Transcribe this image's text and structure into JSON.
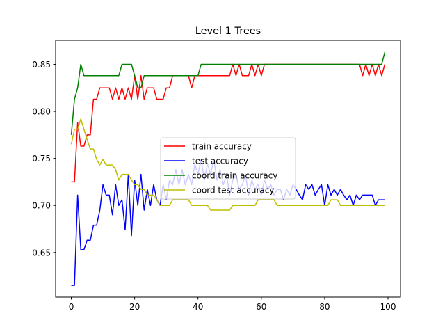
{
  "chart_data": {
    "type": "line",
    "title": "Level 1 Trees",
    "xlabel": "",
    "ylabel": "",
    "xlim": [
      -4.95,
      103.95
    ],
    "ylim": [
      0.6025,
      0.8755
    ],
    "xticks": [
      0,
      20,
      40,
      60,
      80,
      100
    ],
    "yticks": [
      0.65,
      0.7,
      0.75,
      0.8,
      0.85
    ],
    "ytick_labels": [
      "0.65",
      "0.70",
      "0.75",
      "0.80",
      "0.85"
    ],
    "grid": false,
    "legend": {
      "placement": "center"
    },
    "series": [
      {
        "name": "train accuracy",
        "color": "#ff0000",
        "x": [
          0,
          1,
          2,
          3,
          4,
          5,
          6,
          7,
          8,
          9,
          10,
          11,
          12,
          13,
          14,
          15,
          16,
          17,
          18,
          19,
          20,
          21,
          22,
          23,
          24,
          25,
          26,
          27,
          28,
          29,
          30,
          31,
          32,
          33,
          34,
          35,
          36,
          37,
          38,
          39,
          40,
          41,
          42,
          43,
          44,
          45,
          46,
          47,
          48,
          49,
          50,
          51,
          52,
          53,
          54,
          55,
          56,
          57,
          58,
          59,
          60,
          61,
          62,
          63,
          64,
          65,
          66,
          67,
          68,
          69,
          70,
          71,
          72,
          73,
          74,
          75,
          76,
          77,
          78,
          79,
          80,
          81,
          82,
          83,
          84,
          85,
          86,
          87,
          88,
          89,
          90,
          91,
          92,
          93,
          94,
          95,
          96,
          97,
          98,
          99
        ],
        "values": [
          0.725,
          0.725,
          0.788,
          0.763,
          0.763,
          0.775,
          0.775,
          0.813,
          0.813,
          0.825,
          0.825,
          0.825,
          0.825,
          0.813,
          0.825,
          0.813,
          0.825,
          0.813,
          0.825,
          0.813,
          0.838,
          0.813,
          0.838,
          0.813,
          0.825,
          0.825,
          0.825,
          0.813,
          0.813,
          0.813,
          0.825,
          0.825,
          0.838,
          0.838,
          0.838,
          0.838,
          0.838,
          0.838,
          0.825,
          0.838,
          0.838,
          0.838,
          0.838,
          0.838,
          0.838,
          0.838,
          0.838,
          0.838,
          0.838,
          0.838,
          0.838,
          0.85,
          0.838,
          0.85,
          0.838,
          0.838,
          0.838,
          0.85,
          0.838,
          0.85,
          0.838,
          0.85,
          0.85,
          0.85,
          0.85,
          0.85,
          0.85,
          0.85,
          0.85,
          0.85,
          0.85,
          0.85,
          0.85,
          0.85,
          0.85,
          0.85,
          0.85,
          0.85,
          0.85,
          0.85,
          0.85,
          0.85,
          0.85,
          0.85,
          0.85,
          0.85,
          0.85,
          0.85,
          0.85,
          0.85,
          0.85,
          0.85,
          0.838,
          0.85,
          0.838,
          0.85,
          0.838,
          0.85,
          0.838,
          0.85
        ]
      },
      {
        "name": "test accuracy",
        "color": "#0000ff",
        "x": [
          0,
          1,
          2,
          3,
          4,
          5,
          6,
          7,
          8,
          9,
          10,
          11,
          12,
          13,
          14,
          15,
          16,
          17,
          18,
          19,
          20,
          21,
          22,
          23,
          24,
          25,
          26,
          27,
          28,
          29,
          30,
          31,
          32,
          33,
          34,
          35,
          36,
          37,
          38,
          39,
          40,
          41,
          42,
          43,
          44,
          45,
          46,
          47,
          48,
          49,
          50,
          51,
          52,
          53,
          54,
          55,
          56,
          57,
          58,
          59,
          60,
          61,
          62,
          63,
          64,
          65,
          66,
          67,
          68,
          69,
          70,
          71,
          72,
          73,
          74,
          75,
          76,
          77,
          78,
          79,
          80,
          81,
          82,
          83,
          84,
          85,
          86,
          87,
          88,
          89,
          90,
          91,
          92,
          93,
          94,
          95,
          96,
          97,
          98,
          99
        ],
        "values": [
          0.615,
          0.615,
          0.711,
          0.653,
          0.653,
          0.663,
          0.663,
          0.679,
          0.679,
          0.695,
          0.722,
          0.711,
          0.711,
          0.69,
          0.722,
          0.7,
          0.706,
          0.674,
          0.733,
          0.668,
          0.727,
          0.7,
          0.733,
          0.695,
          0.717,
          0.7,
          0.722,
          0.706,
          0.7,
          0.722,
          0.706,
          0.727,
          0.722,
          0.738,
          0.722,
          0.738,
          0.722,
          0.733,
          0.722,
          0.744,
          0.733,
          0.749,
          0.727,
          0.744,
          0.733,
          0.749,
          0.727,
          0.738,
          0.722,
          0.733,
          0.711,
          0.727,
          0.733,
          0.717,
          0.722,
          0.733,
          0.711,
          0.727,
          0.717,
          0.722,
          0.711,
          0.727,
          0.717,
          0.722,
          0.711,
          0.717,
          0.717,
          0.706,
          0.717,
          0.711,
          0.722,
          0.717,
          0.711,
          0.706,
          0.722,
          0.717,
          0.722,
          0.711,
          0.717,
          0.722,
          0.7,
          0.722,
          0.711,
          0.717,
          0.711,
          0.717,
          0.711,
          0.706,
          0.711,
          0.7,
          0.711,
          0.706,
          0.711,
          0.711,
          0.711,
          0.711,
          0.7,
          0.706,
          0.706,
          0.706
        ]
      },
      {
        "name": "coord train accuracy",
        "color": "#008000",
        "x": [
          0,
          1,
          2,
          3,
          4,
          5,
          6,
          7,
          8,
          9,
          10,
          11,
          12,
          13,
          14,
          15,
          16,
          17,
          18,
          19,
          20,
          21,
          22,
          23,
          24,
          25,
          26,
          27,
          28,
          29,
          30,
          31,
          32,
          33,
          34,
          35,
          36,
          37,
          38,
          39,
          40,
          41,
          42,
          43,
          44,
          45,
          46,
          47,
          48,
          49,
          50,
          51,
          52,
          53,
          54,
          55,
          56,
          57,
          58,
          59,
          60,
          61,
          62,
          63,
          64,
          65,
          66,
          67,
          68,
          69,
          70,
          71,
          72,
          73,
          74,
          75,
          76,
          77,
          78,
          79,
          80,
          81,
          82,
          83,
          84,
          85,
          86,
          87,
          88,
          89,
          90,
          91,
          92,
          93,
          94,
          95,
          96,
          97,
          98,
          99
        ],
        "values": [
          0.775,
          0.813,
          0.825,
          0.85,
          0.838,
          0.838,
          0.838,
          0.838,
          0.838,
          0.838,
          0.838,
          0.838,
          0.838,
          0.838,
          0.838,
          0.838,
          0.85,
          0.85,
          0.85,
          0.85,
          0.838,
          0.825,
          0.825,
          0.838,
          0.838,
          0.838,
          0.838,
          0.838,
          0.838,
          0.838,
          0.838,
          0.838,
          0.838,
          0.838,
          0.838,
          0.838,
          0.838,
          0.838,
          0.838,
          0.838,
          0.838,
          0.85,
          0.85,
          0.85,
          0.85,
          0.85,
          0.85,
          0.85,
          0.85,
          0.85,
          0.85,
          0.85,
          0.85,
          0.85,
          0.85,
          0.85,
          0.85,
          0.85,
          0.85,
          0.85,
          0.85,
          0.85,
          0.85,
          0.85,
          0.85,
          0.85,
          0.85,
          0.85,
          0.85,
          0.85,
          0.85,
          0.85,
          0.85,
          0.85,
          0.85,
          0.85,
          0.85,
          0.85,
          0.85,
          0.85,
          0.85,
          0.85,
          0.85,
          0.85,
          0.85,
          0.85,
          0.85,
          0.85,
          0.85,
          0.85,
          0.85,
          0.85,
          0.85,
          0.85,
          0.85,
          0.85,
          0.85,
          0.85,
          0.85,
          0.863
        ]
      },
      {
        "name": "coord test accuracy",
        "color": "#bfbf00",
        "x": [
          0,
          1,
          2,
          3,
          4,
          5,
          6,
          7,
          8,
          9,
          10,
          11,
          12,
          13,
          14,
          15,
          16,
          17,
          18,
          19,
          20,
          21,
          22,
          23,
          24,
          25,
          26,
          27,
          28,
          29,
          30,
          31,
          32,
          33,
          34,
          35,
          36,
          37,
          38,
          39,
          40,
          41,
          42,
          43,
          44,
          45,
          46,
          47,
          48,
          49,
          50,
          51,
          52,
          53,
          54,
          55,
          56,
          57,
          58,
          59,
          60,
          61,
          62,
          63,
          64,
          65,
          66,
          67,
          68,
          69,
          70,
          71,
          72,
          73,
          74,
          75,
          76,
          77,
          78,
          79,
          80,
          81,
          82,
          83,
          84,
          85,
          86,
          87,
          88,
          89,
          90,
          91,
          92,
          93,
          94,
          95,
          96,
          97,
          98,
          99
        ],
        "values": [
          0.765,
          0.781,
          0.781,
          0.792,
          0.781,
          0.77,
          0.76,
          0.76,
          0.749,
          0.743,
          0.749,
          0.743,
          0.743,
          0.743,
          0.738,
          0.727,
          0.733,
          0.733,
          0.733,
          0.727,
          0.722,
          0.722,
          0.717,
          0.717,
          0.711,
          0.711,
          0.711,
          0.706,
          0.7,
          0.7,
          0.7,
          0.7,
          0.706,
          0.706,
          0.706,
          0.706,
          0.706,
          0.706,
          0.7,
          0.7,
          0.7,
          0.7,
          0.7,
          0.7,
          0.695,
          0.695,
          0.695,
          0.695,
          0.695,
          0.695,
          0.695,
          0.7,
          0.7,
          0.7,
          0.7,
          0.7,
          0.7,
          0.7,
          0.7,
          0.706,
          0.706,
          0.706,
          0.706,
          0.706,
          0.706,
          0.7,
          0.7,
          0.7,
          0.7,
          0.7,
          0.7,
          0.7,
          0.7,
          0.7,
          0.7,
          0.7,
          0.7,
          0.7,
          0.7,
          0.7,
          0.7,
          0.7,
          0.706,
          0.706,
          0.706,
          0.7,
          0.7,
          0.7,
          0.7,
          0.7,
          0.7,
          0.7,
          0.7,
          0.7,
          0.7,
          0.7,
          0.7,
          0.7,
          0.7,
          0.7
        ]
      }
    ]
  }
}
